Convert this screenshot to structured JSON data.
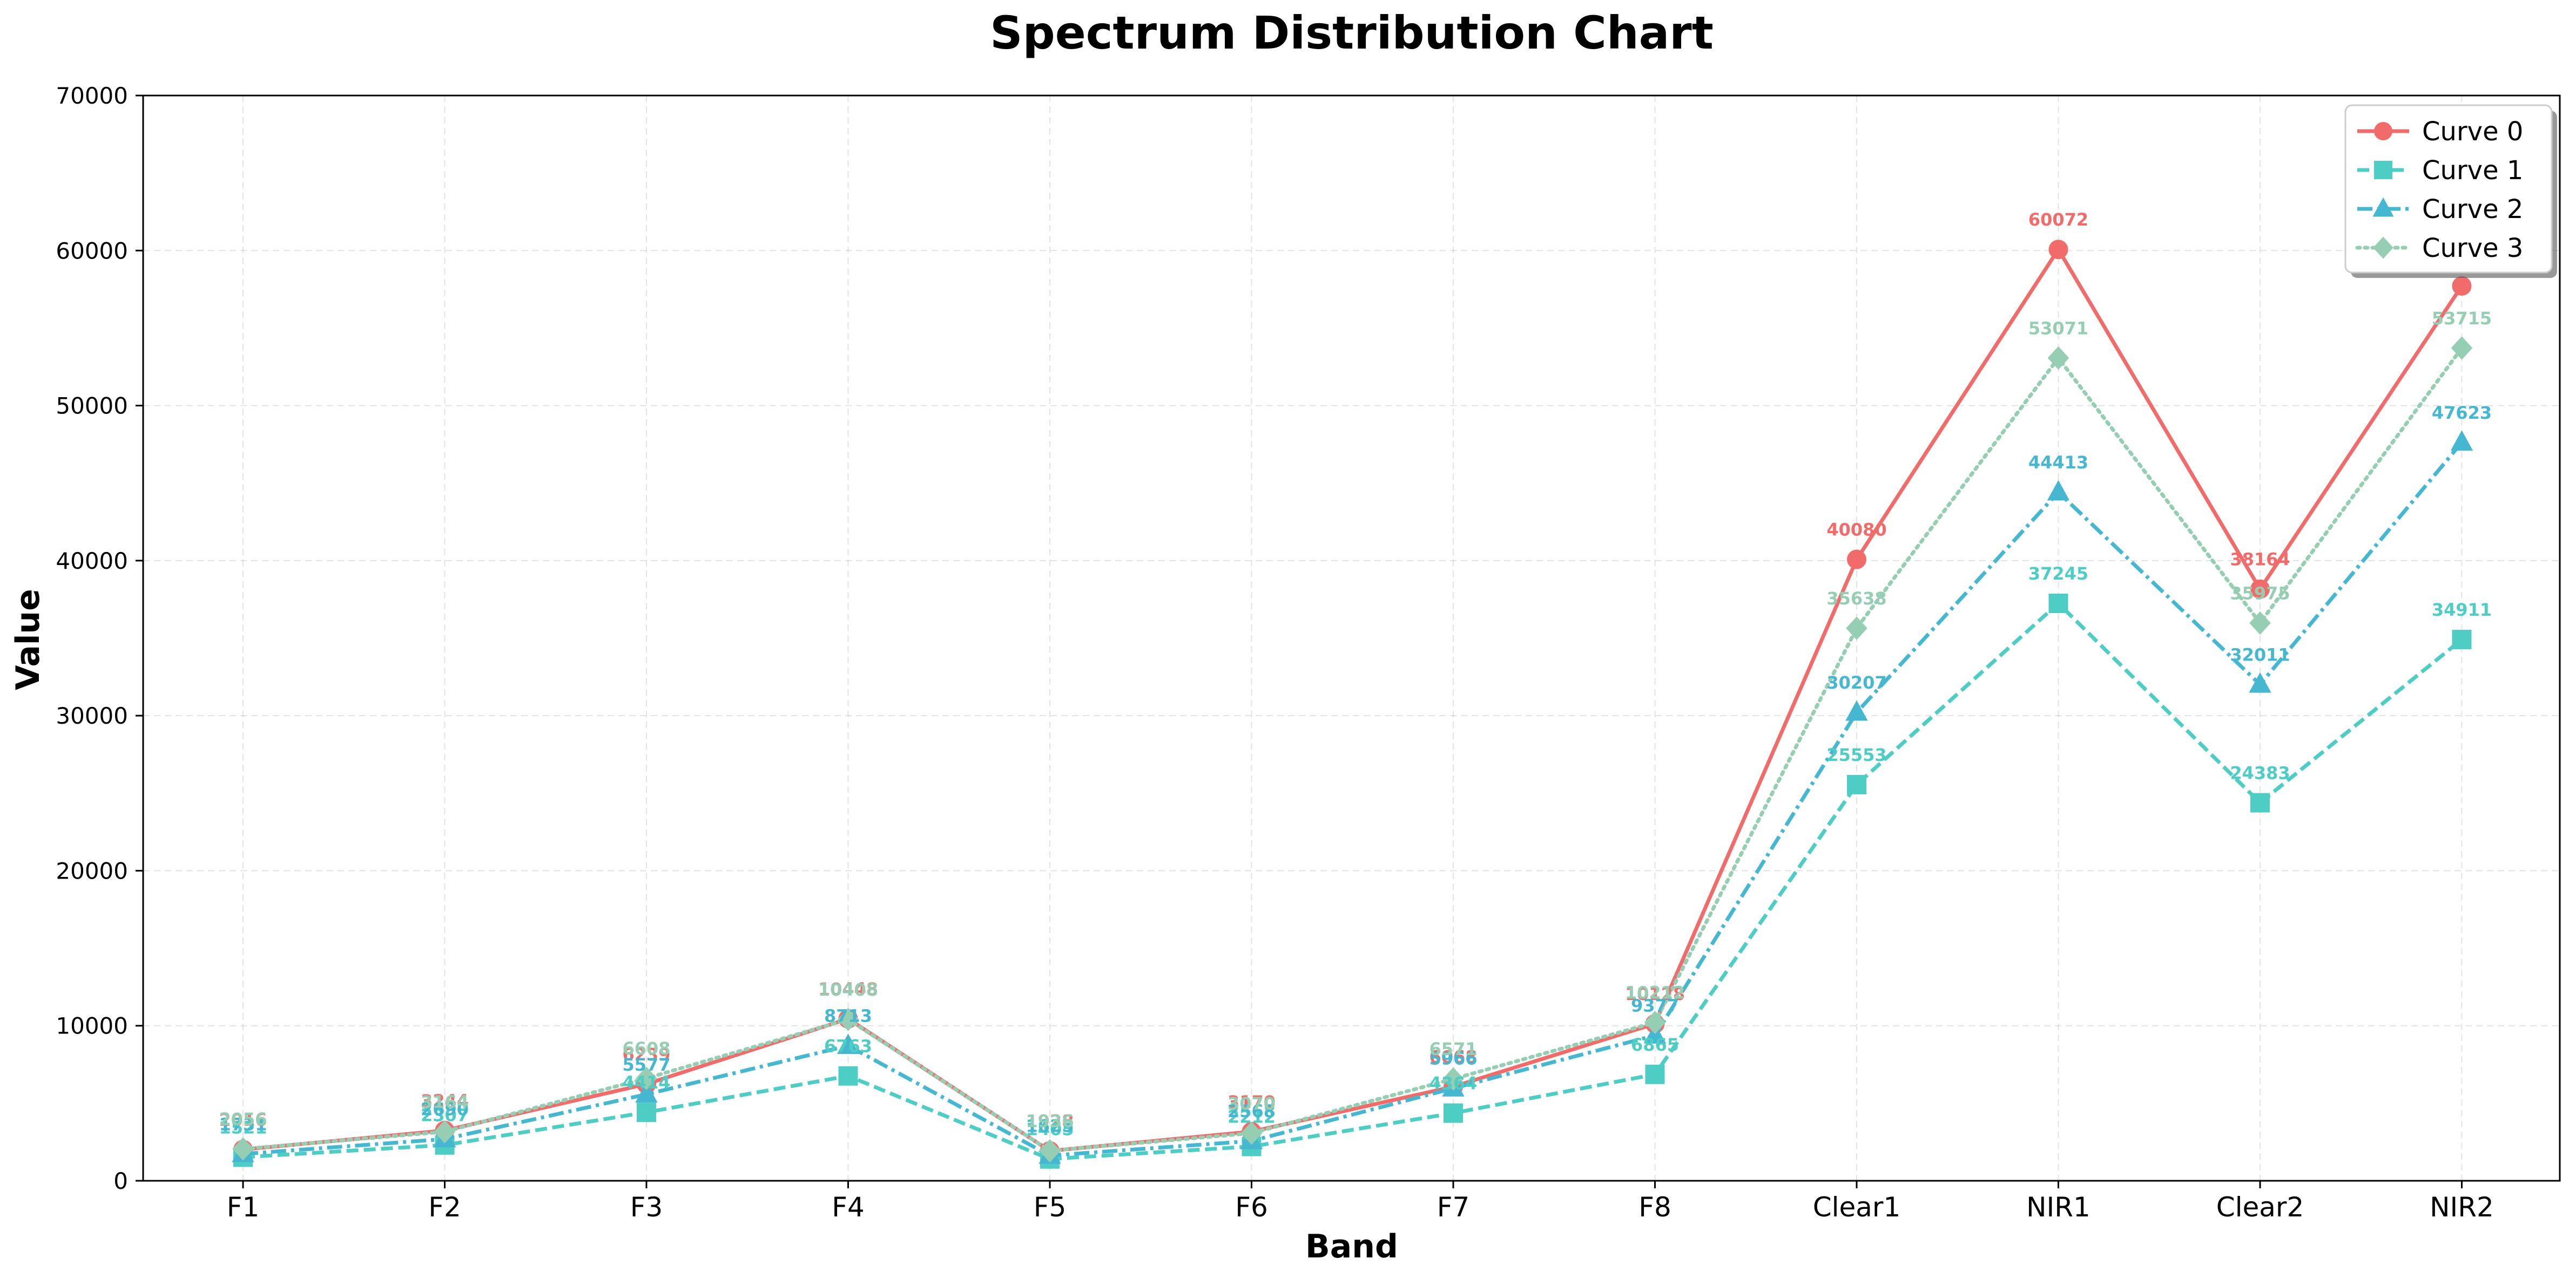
{
  "chart_data": {
    "type": "line",
    "title": "Spectrum Distribution Chart",
    "xlabel": "Band",
    "ylabel": "Value",
    "ylim": [
      0,
      70000
    ],
    "yticks": [
      0,
      10000,
      20000,
      30000,
      40000,
      50000,
      60000,
      70000
    ],
    "grid": true,
    "legend_position": "top-right",
    "categories": [
      "F1",
      "F2",
      "F3",
      "F4",
      "F5",
      "F6",
      "F7",
      "F8",
      "Clear1",
      "NIR1",
      "Clear2",
      "NIR2"
    ],
    "series": [
      {
        "name": "Curve 0",
        "color": "#f26b6b",
        "linestyle": "solid",
        "marker": "circle",
        "values": [
          2016,
          3244,
          6239,
          10448,
          1928,
          3170,
          6068,
          10128,
          40080,
          60072,
          38164,
          57715
        ]
      },
      {
        "name": "Curve 1",
        "color": "#4ecdc4",
        "linestyle": "dashed",
        "marker": "square",
        "values": [
          1521,
          2307,
          4414,
          6763,
          1405,
          2212,
          4364,
          6865,
          25553,
          37245,
          24383,
          34911
        ]
      },
      {
        "name": "Curve 2",
        "color": "#45b7d1",
        "linestyle": "dashdot",
        "marker": "triangle",
        "values": [
          1731,
          2690,
          5577,
          8713,
          1625,
          2568,
          5966,
          9377,
          30207,
          44413,
          32011,
          47623
        ]
      },
      {
        "name": "Curve 3",
        "color": "#96ceb4",
        "linestyle": "dotted",
        "marker": "diamond",
        "values": [
          2056,
          3164,
          6608,
          10408,
          1936,
          3070,
          6571,
          10212,
          35638,
          53071,
          35975,
          53715
        ]
      }
    ]
  }
}
